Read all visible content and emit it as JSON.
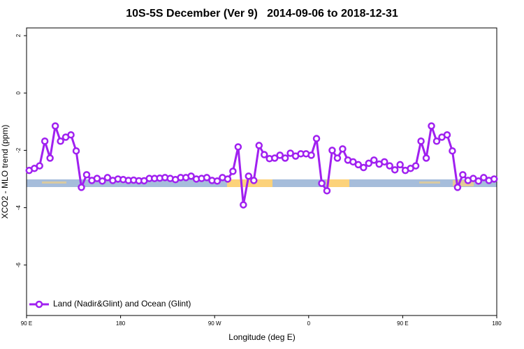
{
  "chart_data": {
    "type": "line",
    "title": "10S-5S December (Ver 9)   2014-09-06 to 2018-12-31",
    "x_label": "Longitude (deg E)",
    "y_label": "XCO2 - MLO trend (ppm)",
    "xlim": [
      90,
      540
    ],
    "ylim": [
      -7.76,
      2.27
    ],
    "xticks": [
      {
        "value": 90,
        "label": "90 E"
      },
      {
        "value": 180,
        "label": "180"
      },
      {
        "value": 270,
        "label": "90 W"
      },
      {
        "value": 360,
        "label": "0"
      },
      {
        "value": 450,
        "label": "90 E"
      },
      {
        "value": 540,
        "label": "180"
      }
    ],
    "yticks": [
      -6,
      -4,
      -2,
      0,
      2
    ],
    "legend": "bottom-left",
    "x": [
      92.5,
      97.5,
      102.5,
      107.5,
      112.5,
      117.5,
      122.5,
      127.5,
      132.5,
      137.5,
      142.5,
      147.5,
      152.5,
      157.5,
      162.5,
      167.5,
      172.5,
      177.5,
      182.5,
      187.5,
      192.5,
      197.5,
      202.5,
      207.5,
      212.5,
      217.5,
      222.5,
      227.5,
      232.5,
      237.5,
      242.5,
      247.5,
      252.5,
      257.5,
      262.5,
      267.5,
      272.5,
      277.5,
      282.5,
      287.5,
      292.5,
      297.5,
      302.5,
      307.5,
      312.5,
      317.5,
      322.5,
      327.5,
      332.5,
      337.5,
      342.5,
      347.5,
      352.5,
      357.5,
      362.5,
      367.5,
      372.5,
      377.5,
      382.5,
      387.5,
      392.5,
      397.5,
      402.5,
      407.5,
      412.5,
      417.5,
      422.5,
      427.5,
      432.5,
      437.5,
      442.5,
      447.5,
      452.5,
      457.5,
      462.5,
      467.5,
      472.5,
      477.5,
      482.5,
      487.5,
      492.5,
      497.5,
      502.5,
      507.5,
      512.5,
      517.5,
      522.5,
      527.5,
      532.5,
      537.5
    ],
    "series": [
      {
        "name": "Land (Nadir&Glint) and Ocean (Glint)",
        "color": "#a020f0",
        "values": [
          -2.7,
          -2.63,
          -2.54,
          -1.68,
          -2.27,
          -1.15,
          -1.68,
          -1.54,
          -1.46,
          -2.02,
          -3.29,
          -2.85,
          -3.05,
          -2.98,
          -3.07,
          -2.95,
          -3.05,
          -3.0,
          -3.02,
          -3.05,
          -3.04,
          -3.06,
          -3.06,
          -2.98,
          -2.98,
          -2.97,
          -2.95,
          -2.98,
          -3.02,
          -2.95,
          -2.95,
          -2.9,
          -3.0,
          -2.98,
          -2.95,
          -3.05,
          -3.07,
          -2.95,
          -3.0,
          -2.73,
          -1.88,
          -3.9,
          -2.9,
          -3.05,
          -1.83,
          -2.15,
          -2.29,
          -2.27,
          -2.17,
          -2.27,
          -2.1,
          -2.2,
          -2.12,
          -2.12,
          -2.17,
          -1.59,
          -3.15,
          -3.41,
          -2.0,
          -2.27,
          -1.95,
          -2.34,
          -2.4,
          -2.5,
          -2.6,
          -2.45,
          -2.34,
          -2.48,
          -2.4,
          -2.54,
          -2.68,
          -2.5,
          -2.7,
          -2.63,
          -2.54,
          -1.68,
          -2.27,
          -1.15,
          -1.68,
          -1.54,
          -1.46,
          -2.02,
          -3.29,
          -2.85,
          -3.05,
          -2.98,
          -3.07,
          -2.95,
          -3.05,
          -3.0
        ]
      }
    ]
  }
}
